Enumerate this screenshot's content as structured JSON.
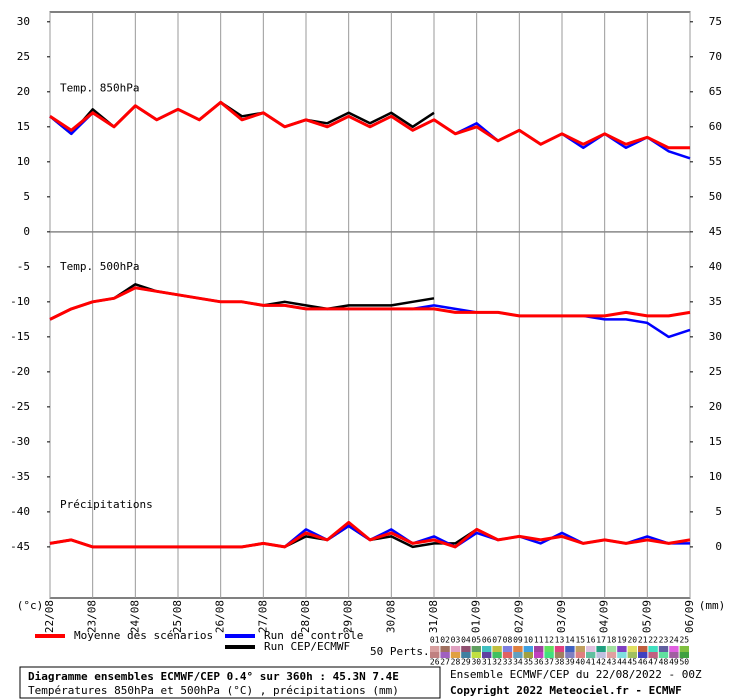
{
  "chart_data": {
    "type": "line",
    "categories": [
      "22/08",
      null,
      "23/08",
      null,
      "24/08",
      null,
      "25/08",
      null,
      "26/08",
      null,
      "27/08",
      null,
      "28/08",
      null,
      "29/08",
      null,
      "30/08",
      null,
      "31/08",
      null,
      "01/09",
      null,
      "02/09",
      null,
      "03/09",
      null,
      "04/09",
      null,
      "05/09",
      null,
      "06/09"
    ],
    "ylim": [
      -52.3,
      31.4
    ],
    "yticks": [
      30,
      25,
      20,
      15,
      10,
      5,
      0,
      -5,
      -10,
      -15,
      -20,
      -25,
      -30,
      -35,
      -40,
      -45
    ],
    "y2lim": [
      -7.3,
      76.4
    ],
    "y2ticks": [
      75,
      70,
      65,
      60,
      55,
      50,
      45,
      40,
      35,
      30,
      25,
      20,
      15,
      10,
      5,
      0
    ],
    "ylabel": "(°c)",
    "y2label": "(mm)",
    "xgrid": true,
    "panels": [
      {
        "label": "Temp. 850hPa",
        "axis": "y"
      },
      {
        "label": "Temp. 500hPa",
        "axis": "y"
      },
      {
        "label": "Précipitations",
        "axis": "y2"
      }
    ],
    "series": [
      {
        "name": "Moyenne des scénarios",
        "color": "#ff0000",
        "values": [
          [
            16.5,
            14.5,
            17,
            15,
            18,
            16,
            17.5,
            16,
            18.5,
            16,
            17,
            15,
            16,
            15,
            16.5,
            15,
            16.5,
            14.5,
            16,
            14,
            15,
            13,
            14.5,
            12.5,
            14,
            12.5,
            14,
            12.5,
            13.5,
            12,
            12
          ],
          [
            -12.5,
            -11,
            -10,
            -9.5,
            -8,
            -8.5,
            -9,
            -9.5,
            -10,
            -10,
            -10.5,
            -10.5,
            -11,
            -11,
            -11,
            -11,
            -11,
            -11,
            -11,
            -11.5,
            -11.5,
            -11.5,
            -12,
            -12,
            -12,
            -12,
            -12,
            -11.5,
            -12,
            -12,
            -11.5
          ],
          [
            0.5,
            1,
            0,
            0,
            0,
            0,
            0,
            0,
            0,
            0,
            0.5,
            0,
            2,
            1,
            3.5,
            1,
            2,
            0.5,
            1,
            0,
            2.5,
            1,
            1.5,
            1,
            1.5,
            0.5,
            1,
            0.5,
            1,
            0.5,
            1
          ]
        ]
      },
      {
        "name": "Run de contrôle",
        "color": "#0000ff",
        "values": [
          [
            16.5,
            14,
            17,
            15,
            18,
            16,
            17.5,
            16,
            18.5,
            16,
            17,
            15,
            16,
            15,
            16.5,
            15,
            16.5,
            14.5,
            16,
            14,
            15.5,
            13,
            14.5,
            12.5,
            14,
            12,
            14,
            12,
            13.5,
            11.5,
            10.5
          ],
          [
            -12.5,
            -11,
            -10,
            -9.5,
            -8,
            -8.5,
            -9,
            -9.5,
            -10,
            -10,
            -10.5,
            -10.5,
            -11,
            -11,
            -11,
            -11,
            -11,
            -11,
            -10.5,
            -11,
            -11.5,
            -11.5,
            -12,
            -12,
            -12,
            -12,
            -12.5,
            -12.5,
            -13,
            -15,
            -14
          ],
          [
            0.5,
            1,
            0,
            0,
            0,
            0,
            0,
            0,
            0,
            0,
            0.5,
            0,
            2.5,
            1,
            3,
            1,
            2.5,
            0.5,
            1.5,
            0,
            2,
            1,
            1.5,
            0.5,
            2,
            0.5,
            1,
            0.5,
            1.5,
            0.5,
            0.5
          ]
        ]
      },
      {
        "name": "Run CEP/ECMWF",
        "color": "#000000",
        "values": [
          [
            16.5,
            14,
            17.5,
            15,
            18,
            16,
            17.5,
            16,
            18.5,
            16.5,
            17,
            15,
            16,
            15.5,
            17,
            15.5,
            17,
            15,
            17,
            null,
            null,
            null,
            null,
            null,
            null,
            null,
            null,
            null,
            null,
            null,
            null
          ],
          [
            -12.5,
            -11,
            -10,
            -9.5,
            -7.5,
            -8.5,
            -9,
            -9.5,
            -10,
            -10,
            -10.5,
            -10,
            -10.5,
            -11,
            -10.5,
            -10.5,
            -10.5,
            -10,
            -9.5,
            null,
            null,
            null,
            null,
            null,
            null,
            null,
            null,
            null,
            null,
            null,
            null
          ],
          [
            0.5,
            1,
            0,
            0,
            0,
            0,
            0,
            0,
            0,
            0,
            0.5,
            0,
            1.5,
            1,
            3,
            1,
            1.5,
            0,
            0.5,
            0.5,
            2.5,
            null,
            null,
            null,
            null,
            null,
            null,
            null,
            null,
            null,
            null
          ]
        ]
      }
    ],
    "perturbations_label": "50 Perts.",
    "perturbations": [
      {
        "label": "01",
        "color": "#d8a0a0"
      },
      {
        "label": "02",
        "color": "#a07060"
      },
      {
        "label": "03",
        "color": "#e0a0c0"
      },
      {
        "label": "04",
        "color": "#905070"
      },
      {
        "label": "05",
        "color": "#60a060"
      },
      {
        "label": "06",
        "color": "#40c0c0"
      },
      {
        "label": "07",
        "color": "#c0c040"
      },
      {
        "label": "08",
        "color": "#8080e0"
      },
      {
        "label": "09",
        "color": "#e08040"
      },
      {
        "label": "10",
        "color": "#40a0e0"
      },
      {
        "label": "11",
        "color": "#a040a0"
      },
      {
        "label": "12",
        "color": "#60e060"
      },
      {
        "label": "13",
        "color": "#e04080"
      },
      {
        "label": "14",
        "color": "#4060c0"
      },
      {
        "label": "15",
        "color": "#c0a060"
      },
      {
        "label": "16",
        "color": "#e0c0e0"
      },
      {
        "label": "17",
        "color": "#20a080"
      },
      {
        "label": "18",
        "color": "#a0e0a0"
      },
      {
        "label": "19",
        "color": "#8040c0"
      },
      {
        "label": "20",
        "color": "#e0e060"
      },
      {
        "label": "21",
        "color": "#c06040"
      },
      {
        "label": "22",
        "color": "#40e0c0"
      },
      {
        "label": "23",
        "color": "#6060a0"
      },
      {
        "label": "24",
        "color": "#e060e0"
      },
      {
        "label": "25",
        "color": "#80c040"
      },
      {
        "label": "26",
        "color": "#c08080"
      },
      {
        "label": "27",
        "color": "#a060c0"
      },
      {
        "label": "28",
        "color": "#e0a040"
      },
      {
        "label": "29",
        "color": "#4080a0"
      },
      {
        "label": "30",
        "color": "#c0e040"
      },
      {
        "label": "31",
        "color": "#6040a0"
      },
      {
        "label": "32",
        "color": "#40c060"
      },
      {
        "label": "33",
        "color": "#e06060"
      },
      {
        "label": "34",
        "color": "#60a0c0"
      },
      {
        "label": "35",
        "color": "#a0a040"
      },
      {
        "label": "36",
        "color": "#c040c0"
      },
      {
        "label": "37",
        "color": "#40e080"
      },
      {
        "label": "38",
        "color": "#a08060"
      },
      {
        "label": "39",
        "color": "#8080c0"
      },
      {
        "label": "40",
        "color": "#e08080"
      },
      {
        "label": "41",
        "color": "#60c0a0"
      },
      {
        "label": "42",
        "color": "#c0c0e0"
      },
      {
        "label": "43",
        "color": "#e0a0a0"
      },
      {
        "label": "44",
        "color": "#80e0e0"
      },
      {
        "label": "45",
        "color": "#a0c060"
      },
      {
        "label": "46",
        "color": "#4040c0"
      },
      {
        "label": "47",
        "color": "#c06080"
      },
      {
        "label": "48",
        "color": "#60e0a0"
      },
      {
        "label": "49",
        "color": "#a060a0"
      },
      {
        "label": "50",
        "color": "#40a040"
      }
    ],
    "footer": {
      "title": "Diagramme ensembles ECMWF/CEP 0.4° sur 360h : 45.3N 7.4E",
      "subtitle": "Températures 850hPa et 500hPa (°C) , précipitations (mm)",
      "run": "Ensemble ECMWF/CEP du 22/08/2022 - 00Z",
      "copyright": "Copyright 2022 Meteociel.fr - ECMWF"
    }
  }
}
